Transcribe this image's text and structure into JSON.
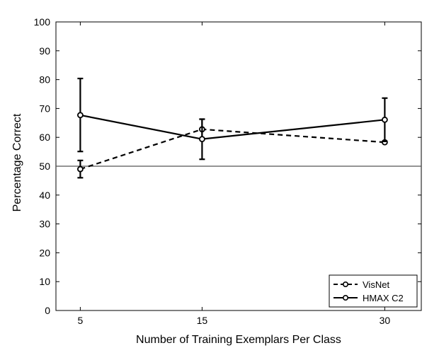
{
  "chart_data": {
    "type": "line",
    "xlabel": "Number of Training Exemplars Per Class",
    "ylabel": "Percentage Correct",
    "x": [
      5,
      15,
      30
    ],
    "xlim": [
      3,
      33
    ],
    "ylim": [
      0,
      100
    ],
    "yticks": [
      0,
      10,
      20,
      30,
      40,
      50,
      60,
      70,
      80,
      90,
      100
    ],
    "xticks": [
      5,
      15,
      30
    ],
    "reference_line": 50,
    "grid": false,
    "legend_position": "bottom-right",
    "series": [
      {
        "name": "VisNet",
        "style": "dashed",
        "values": [
          49,
          62.8,
          58.3
        ],
        "err_low": [
          46,
          59.5,
          58.3
        ],
        "err_high": [
          52,
          66.3,
          58.3
        ]
      },
      {
        "name": "HMAX C2",
        "style": "solid",
        "values": [
          67.7,
          59.4,
          66.1
        ],
        "err_low": [
          55.1,
          52.4,
          58.6
        ],
        "err_high": [
          80.4,
          66.3,
          73.6
        ]
      }
    ],
    "colors": {
      "line": "#000000",
      "reference": "#555555"
    }
  }
}
